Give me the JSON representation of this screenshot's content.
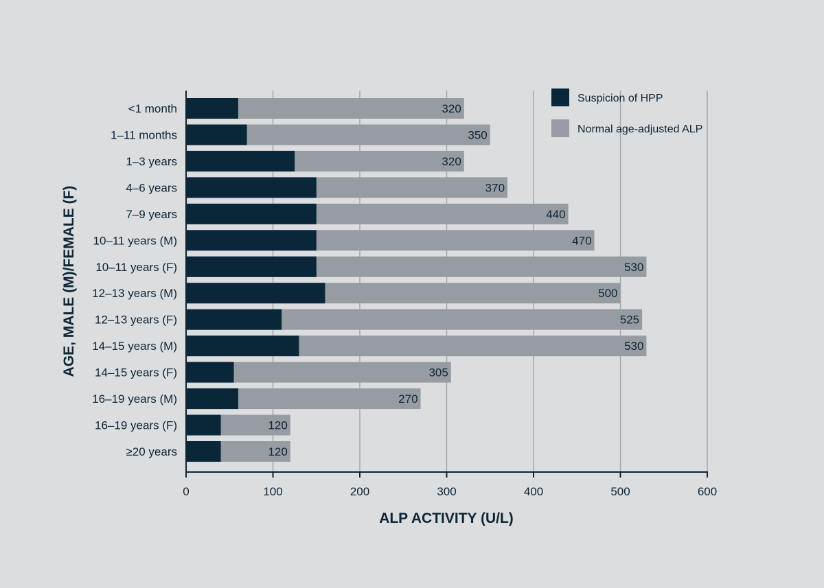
{
  "chart_data": {
    "type": "bar",
    "orientation": "horizontal",
    "stacked": "overlay",
    "xlabel": "ALP ACTIVITY (U/L)",
    "ylabel": "AGE, MALE (M)/FEMALE (F)",
    "xlim": [
      0,
      600
    ],
    "xticks": [
      0,
      100,
      200,
      300,
      400,
      500,
      600
    ],
    "grid": "vertical",
    "legend_position": "top-right",
    "categories": [
      "<1 month",
      "1–11 months",
      "1–3 years",
      "4–6 years",
      "7–9 years",
      "10–11 years (M)",
      "10–11 years (F)",
      "12–13 years (M)",
      "12–13 years (F)",
      "14–15 years (M)",
      "14–15 years (F)",
      "16–19 years (M)",
      "16–19 years (F)",
      "≥20 years"
    ],
    "series": [
      {
        "name": "Suspicion of HPP",
        "color": "#0a2639",
        "values": [
          60,
          70,
          125,
          150,
          150,
          150,
          150,
          160,
          110,
          130,
          55,
          60,
          40,
          40
        ]
      },
      {
        "name": "Normal age-adjusted ALP",
        "color": "#979ca3",
        "values": [
          320,
          350,
          320,
          370,
          440,
          470,
          530,
          500,
          525,
          530,
          305,
          270,
          120,
          120
        ]
      }
    ],
    "data_labels": [
      "320",
      "350",
      "320",
      "370",
      "440",
      "470",
      "530",
      "500",
      "525",
      "530",
      "305",
      "270",
      "120",
      "120"
    ]
  }
}
